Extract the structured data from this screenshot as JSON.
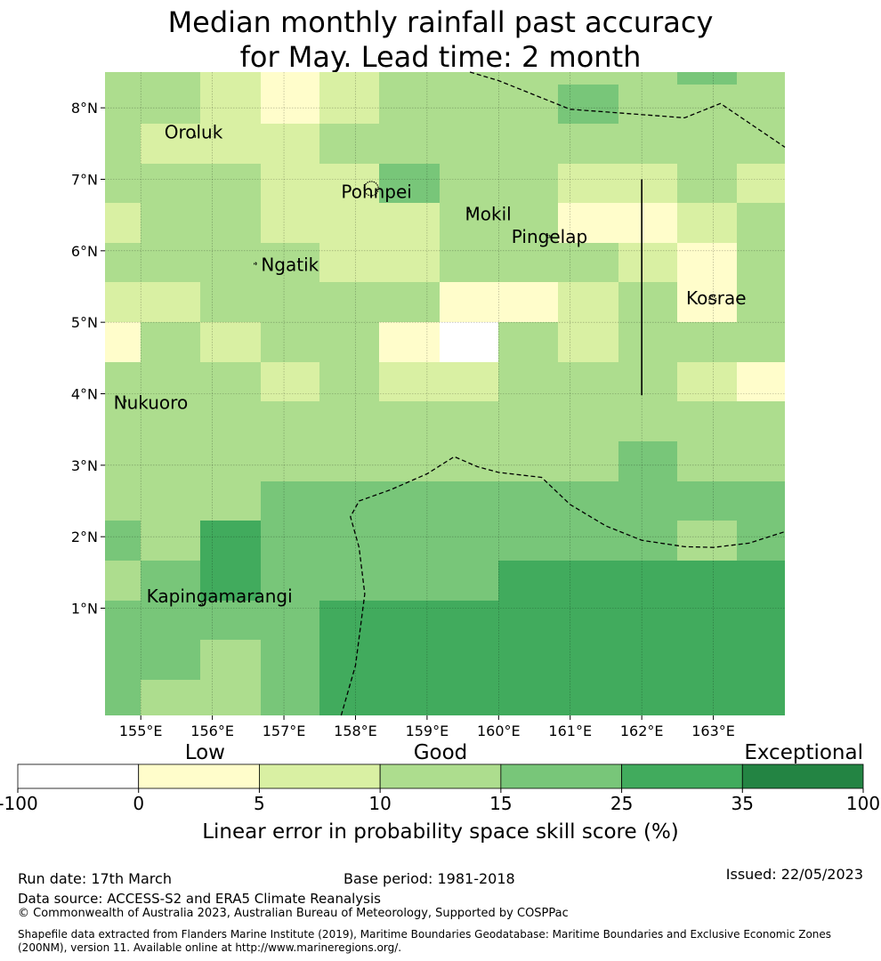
{
  "title": {
    "line1": "Median monthly rainfall past accuracy",
    "line2": "for May. Lead time: 2 month"
  },
  "map": {
    "lon_range": [
      154.5,
      164.0
    ],
    "lat_range": [
      -0.5,
      8.5
    ],
    "x_ticks": [
      {
        "lon": 155,
        "label": "155°E"
      },
      {
        "lon": 156,
        "label": "156°E"
      },
      {
        "lon": 157,
        "label": "157°E"
      },
      {
        "lon": 158,
        "label": "158°E"
      },
      {
        "lon": 159,
        "label": "159°E"
      },
      {
        "lon": 160,
        "label": "160°E"
      },
      {
        "lon": 161,
        "label": "161°E"
      },
      {
        "lon": 162,
        "label": "162°E"
      },
      {
        "lon": 163,
        "label": "163°E"
      }
    ],
    "y_ticks": [
      {
        "lat": 1,
        "label": "1°N"
      },
      {
        "lat": 2,
        "label": "2°N"
      },
      {
        "lat": 3,
        "label": "3°N"
      },
      {
        "lat": 4,
        "label": "4°N"
      },
      {
        "lat": 5,
        "label": "5°N"
      },
      {
        "lat": 6,
        "label": "6°N"
      },
      {
        "lat": 7,
        "label": "7°N"
      },
      {
        "lat": 8,
        "label": "8°N"
      }
    ],
    "grid_lon_edges": [
      154.5,
      155.0,
      155.83,
      156.67,
      157.5,
      158.33,
      159.17,
      160.0,
      160.83,
      161.67,
      162.5,
      163.33,
      164.0
    ],
    "grid_lat_edges": [
      8.5,
      8.33,
      7.78,
      7.22,
      6.67,
      6.11,
      5.56,
      5.0,
      4.44,
      3.89,
      3.33,
      2.78,
      2.22,
      1.67,
      1.11,
      0.56,
      0.0,
      -0.5
    ],
    "skill_class_grid": [
      [
        3,
        3,
        2,
        1,
        2,
        3,
        3,
        3,
        3,
        3,
        4,
        3
      ],
      [
        3,
        3,
        2,
        1,
        2,
        3,
        3,
        3,
        4,
        3,
        3,
        3
      ],
      [
        3,
        2,
        2,
        2,
        3,
        3,
        3,
        3,
        3,
        3,
        3,
        3
      ],
      [
        3,
        3,
        3,
        2,
        2,
        4,
        3,
        3,
        2,
        2,
        3,
        2
      ],
      [
        2,
        3,
        3,
        2,
        2,
        2,
        3,
        3,
        1,
        1,
        2,
        3
      ],
      [
        3,
        3,
        3,
        3,
        2,
        2,
        3,
        3,
        3,
        2,
        1,
        3
      ],
      [
        2,
        2,
        3,
        3,
        3,
        3,
        1,
        1,
        2,
        3,
        1,
        3
      ],
      [
        1,
        3,
        2,
        3,
        3,
        1,
        0,
        3,
        2,
        3,
        3,
        3
      ],
      [
        3,
        3,
        3,
        2,
        3,
        2,
        2,
        3,
        3,
        3,
        2,
        1
      ],
      [
        3,
        3,
        3,
        3,
        3,
        3,
        3,
        3,
        3,
        3,
        3,
        3
      ],
      [
        3,
        3,
        3,
        3,
        3,
        3,
        3,
        3,
        3,
        4,
        3,
        3
      ],
      [
        3,
        3,
        3,
        4,
        4,
        4,
        4,
        4,
        4,
        4,
        4,
        4
      ],
      [
        4,
        3,
        5,
        4,
        4,
        4,
        4,
        4,
        4,
        4,
        3,
        4
      ],
      [
        3,
        4,
        5,
        4,
        4,
        4,
        4,
        5,
        5,
        5,
        5,
        5
      ],
      [
        4,
        4,
        4,
        4,
        5,
        5,
        5,
        5,
        5,
        5,
        5,
        5
      ],
      [
        4,
        4,
        3,
        4,
        5,
        5,
        5,
        5,
        5,
        5,
        5,
        5
      ],
      [
        4,
        3,
        3,
        4,
        5,
        5,
        5,
        5,
        5,
        5,
        5,
        5
      ]
    ],
    "places": [
      {
        "name": "Oroluk",
        "lon": 155.33,
        "lat": 7.57
      },
      {
        "name": "Pohnpei",
        "lon": 157.8,
        "lat": 6.74
      },
      {
        "name": "Mokil",
        "lon": 159.53,
        "lat": 6.43
      },
      {
        "name": "Pingelap",
        "lon": 160.18,
        "lat": 6.11
      },
      {
        "name": "Ngatik",
        "lon": 156.68,
        "lat": 5.72
      },
      {
        "name": "Kosrae",
        "lon": 162.62,
        "lat": 5.25
      },
      {
        "name": "Nukuoro",
        "lon": 154.62,
        "lat": 3.79
      },
      {
        "name": "Kapingamarangi",
        "lon": 155.08,
        "lat": 1.08
      }
    ],
    "eez_boundaries": [
      [
        [
          159.6,
          8.5
        ],
        [
          160.0,
          8.38
        ],
        [
          161.0,
          7.98
        ],
        [
          162.6,
          7.86
        ],
        [
          163.1,
          8.06
        ],
        [
          164.0,
          7.45
        ]
      ],
      [
        [
          157.8,
          -0.5
        ],
        [
          158.0,
          0.2
        ],
        [
          158.13,
          1.2
        ],
        [
          158.05,
          1.85
        ],
        [
          157.93,
          2.28
        ],
        [
          158.05,
          2.5
        ],
        [
          158.5,
          2.66
        ],
        [
          159.0,
          2.88
        ],
        [
          159.38,
          3.12
        ],
        [
          159.7,
          2.98
        ],
        [
          160.0,
          2.9
        ],
        [
          160.6,
          2.83
        ],
        [
          161.0,
          2.45
        ],
        [
          161.5,
          2.15
        ],
        [
          162.0,
          1.95
        ],
        [
          162.6,
          1.86
        ],
        [
          163.0,
          1.85
        ],
        [
          163.5,
          1.91
        ],
        [
          164.0,
          2.07
        ]
      ]
    ],
    "solid_boundary": [
      [
        162.0,
        7.0
      ],
      [
        162.0,
        3.98
      ]
    ]
  },
  "legend": {
    "category_labels": [
      "Low",
      "Good",
      "Exceptional"
    ],
    "bin_colors": [
      "#ffffff",
      "#fffdcb",
      "#d9f0a3",
      "#addd8e",
      "#78c679",
      "#41ab5d",
      "#238443"
    ],
    "tick_labels": [
      "-100",
      "0",
      "5",
      "10",
      "15",
      "25",
      "35",
      "100"
    ],
    "axis_label": "Linear error in probability space skill score (%)"
  },
  "footer": {
    "run_date": "Run date: 17th March",
    "base_period": "Base period: 1981-2018",
    "issued": "Issued: 22/05/2023",
    "data_source": "Data source: ACCESS-S2 and ERA5 Climate Reanalysis",
    "copyright": "© Commonwealth of Australia 2023, Australian Bureau of Meteorology, Supported by COSPPac",
    "shapefile_line1": "Shapefile data extracted from Flanders Marine Institute (2019), Maritime Boundaries Geodatabase: Maritime Boundaries and Exclusive Economic Zones",
    "shapefile_line2": "(200NM), version 11. Available online at http://www.marineregions.org/."
  }
}
